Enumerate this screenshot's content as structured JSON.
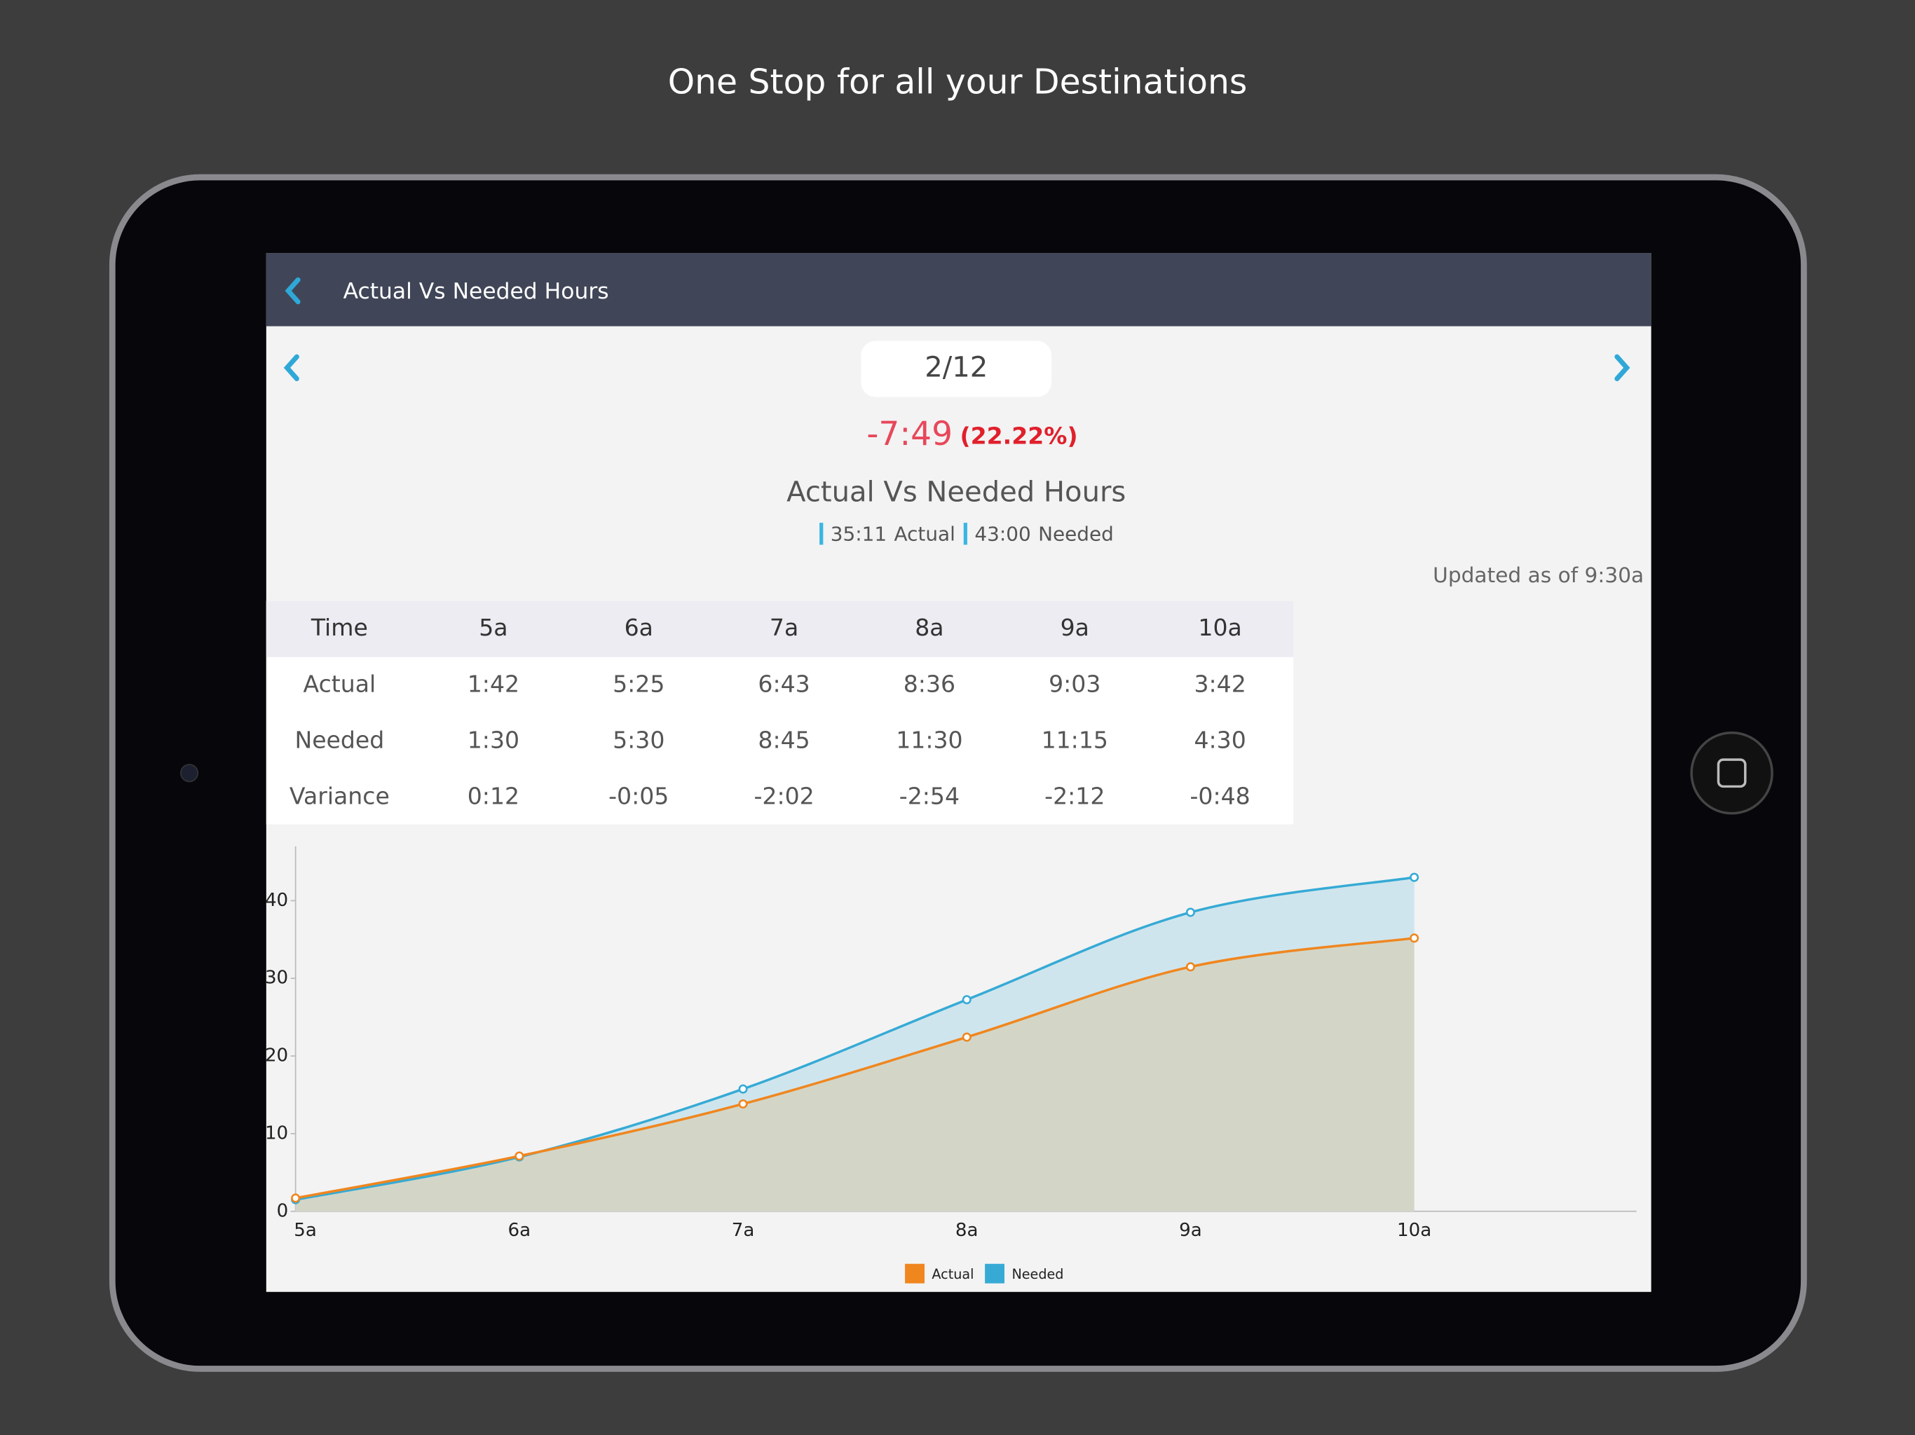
{
  "header": {
    "title": "One Stop for all your Destinations"
  },
  "toolbar": {
    "title": "Actual Vs Needed Hours"
  },
  "date": "2/12",
  "variance": "-7:49",
  "variance_percent": "(22.22%)",
  "summary": {
    "title": "Actual Vs Needed Hours",
    "items": [
      {
        "value": "35:11",
        "label": "Actual"
      },
      {
        "value": "43:00",
        "label": "Needed"
      }
    ]
  },
  "updated": "Updated as of 9:30a",
  "table": {
    "header": [
      "Time",
      "5a",
      "6a",
      "7a",
      "8a",
      "9a",
      "10a"
    ],
    "rows": [
      [
        "Actual",
        "1:42",
        "5:25",
        "6:43",
        "8:36",
        "9:03",
        "3:42"
      ],
      [
        "Needed",
        "1:30",
        "5:30",
        "8:45",
        "11:30",
        "11:15",
        "4:30"
      ],
      [
        "Variance",
        "0:12",
        "-0:05",
        "-2:02",
        "-2:54",
        "-2:12",
        "-0:48"
      ]
    ]
  },
  "chart_data": {
    "type": "area",
    "categories": [
      "5a",
      "6a",
      "7a",
      "8a",
      "9a",
      "10a"
    ],
    "series": [
      {
        "name": "Actual",
        "color": "#f0861e",
        "area_color": "#d3d6c7",
        "values": [
          1.7,
          7.12,
          13.83,
          22.43,
          31.48,
          35.18
        ]
      },
      {
        "name": "Needed",
        "color": "#36aad5",
        "area_color": "#cfe5ee",
        "values": [
          1.5,
          7,
          15.75,
          27.25,
          38.5,
          43
        ]
      }
    ],
    "ylim": [
      0,
      47
    ],
    "yticks": [
      0,
      10,
      20,
      30,
      40
    ],
    "legend": "bottom"
  }
}
